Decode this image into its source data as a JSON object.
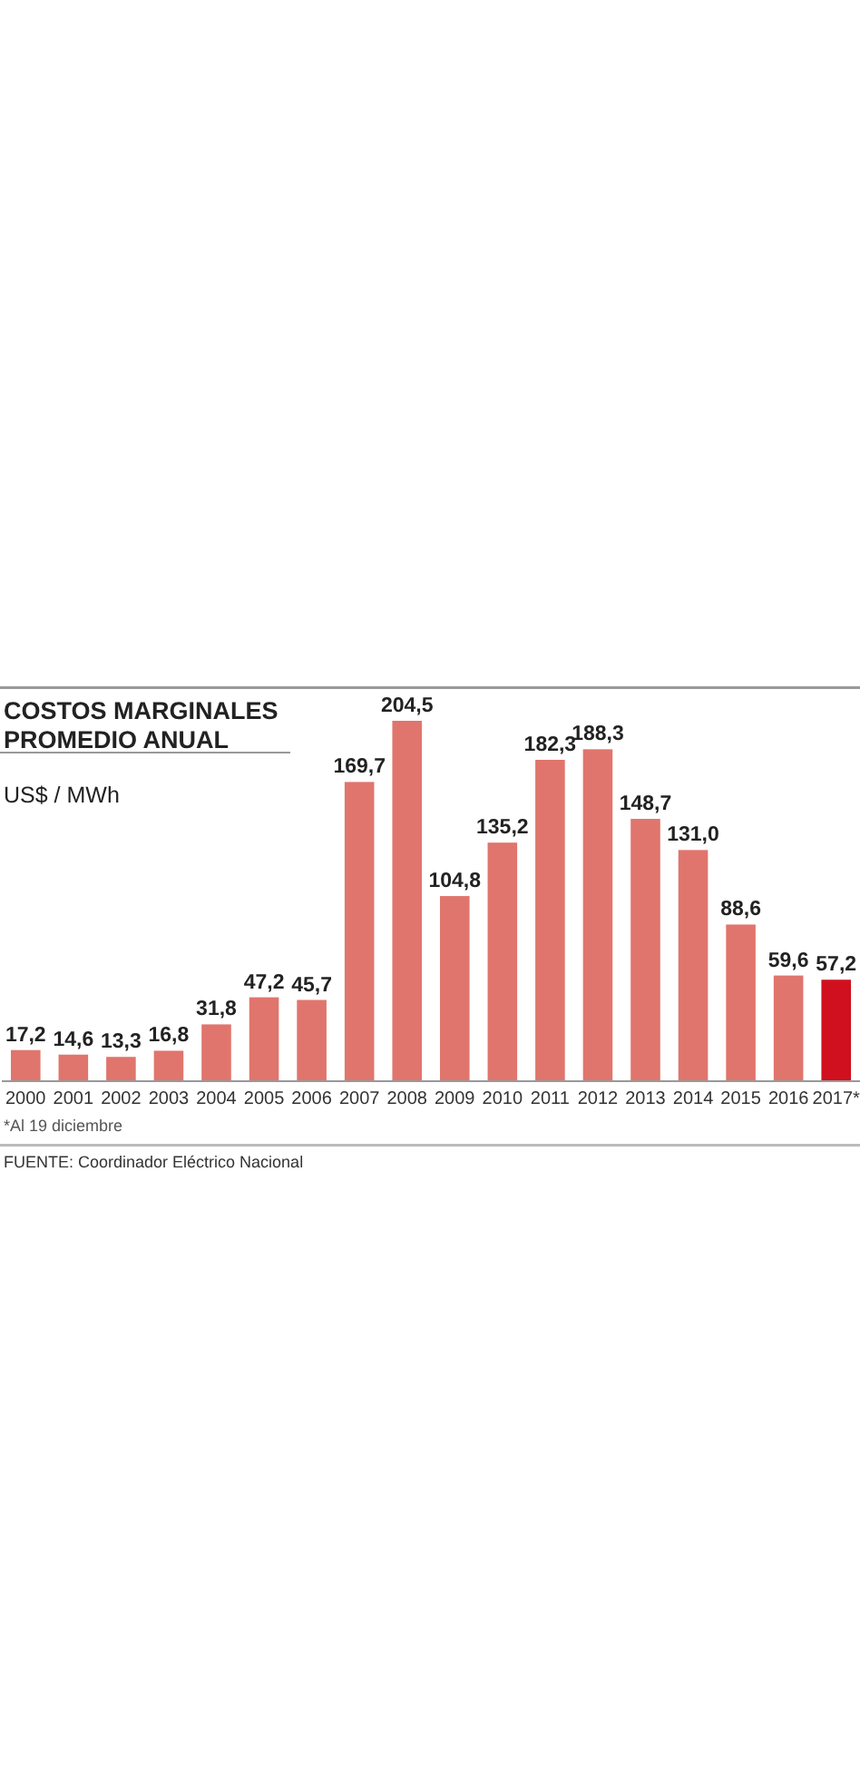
{
  "chart_data": {
    "type": "bar",
    "title": "COSTOS MARGINALES\nPROMEDIO ANUAL",
    "ylabel": "US$ / MWh",
    "categories": [
      "2000",
      "2001",
      "2002",
      "2003",
      "2004",
      "2005",
      "2006",
      "2007",
      "2008",
      "2009",
      "2010",
      "2011",
      "2012",
      "2013",
      "2014",
      "2015",
      "2016",
      "2017*"
    ],
    "values": [
      17.2,
      14.6,
      13.3,
      16.8,
      31.8,
      47.2,
      45.7,
      169.7,
      204.5,
      104.8,
      135.2,
      182.3,
      188.3,
      148.7,
      131.0,
      88.6,
      59.6,
      57.2
    ],
    "value_labels": [
      "17,2",
      "14,6",
      "13,3",
      "16,8",
      "31,8",
      "47,2",
      "45,7",
      "169,7",
      "204,5",
      "104,8",
      "135,2",
      "182,3",
      "188,3",
      "148,7",
      "131,0",
      "88,6",
      "59,6",
      "57,2"
    ],
    "colors": [
      "#e0756d",
      "#e0756d",
      "#e0756d",
      "#e0756d",
      "#e0756d",
      "#e0756d",
      "#e0756d",
      "#e0756d",
      "#e0756d",
      "#e0756d",
      "#e0756d",
      "#e0756d",
      "#e0756d",
      "#e0756d",
      "#e0756d",
      "#e0756d",
      "#e0756d",
      "#d0101e"
    ],
    "annotations": [
      "*Al 19 diciembre",
      "FUENTE: Coordinador Eléctrico Nacional"
    ]
  }
}
